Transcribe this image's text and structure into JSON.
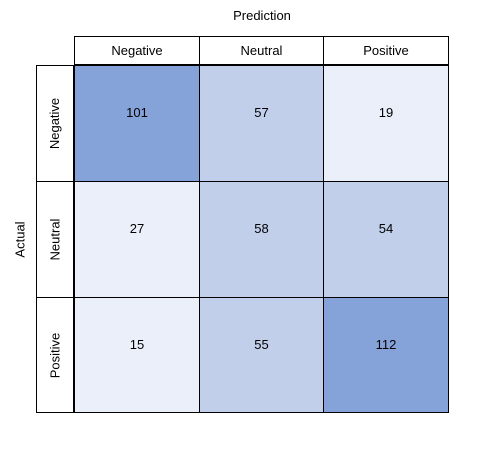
{
  "chart_data": {
    "type": "heatmap",
    "x_title": "Prediction",
    "y_title": "Actual",
    "columns": [
      "Negative",
      "Neutral",
      "Positive"
    ],
    "rows": [
      "Negative",
      "Neutral",
      "Positive"
    ],
    "values": [
      [
        101,
        57,
        19
      ],
      [
        27,
        58,
        54
      ],
      [
        15,
        55,
        112
      ]
    ],
    "colors": {
      "high": "#86a3d9",
      "mid": "#c1cfeb",
      "low": "#eaeff9"
    }
  }
}
